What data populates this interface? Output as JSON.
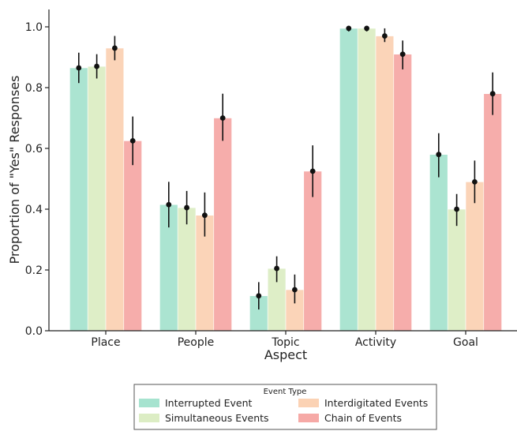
{
  "chart_data": {
    "type": "bar",
    "xlabel": "Aspect",
    "ylabel": "Proportion of \"Yes\" Responses",
    "ylim": [
      0,
      1.05
    ],
    "yticks": [
      "0.0",
      "0.2",
      "0.4",
      "0.6",
      "0.8",
      "1.0"
    ],
    "categories": [
      "Place",
      "People",
      "Topic",
      "Activity",
      "Goal"
    ],
    "error_bars": true,
    "legend": {
      "title": "Event Type",
      "placement": "bottom-center, below axes, 2 columns"
    },
    "series": [
      {
        "name": "Interrupted Event",
        "color": "#a6e3cf",
        "values": [
          0.865,
          0.415,
          0.115,
          0.995,
          0.58
        ],
        "err_low": [
          0.815,
          0.34,
          0.07,
          0.985,
          0.505
        ],
        "err_high": [
          0.915,
          0.49,
          0.16,
          1.0,
          0.65
        ]
      },
      {
        "name": "Simultaneous Events",
        "color": "#dcedc4",
        "values": [
          0.87,
          0.405,
          0.205,
          0.995,
          0.4
        ],
        "err_low": [
          0.83,
          0.35,
          0.16,
          0.985,
          0.345
        ],
        "err_high": [
          0.91,
          0.46,
          0.245,
          1.0,
          0.45
        ]
      },
      {
        "name": "Interdigitated Events",
        "color": "#fbd2b4",
        "values": [
          0.93,
          0.38,
          0.135,
          0.97,
          0.49
        ],
        "err_low": [
          0.89,
          0.31,
          0.09,
          0.95,
          0.42
        ],
        "err_high": [
          0.97,
          0.455,
          0.185,
          0.995,
          0.56
        ]
      },
      {
        "name": "Chain of Events",
        "color": "#f6a9a6",
        "values": [
          0.625,
          0.7,
          0.525,
          0.91,
          0.78
        ],
        "err_low": [
          0.545,
          0.625,
          0.44,
          0.86,
          0.71
        ],
        "err_high": [
          0.705,
          0.78,
          0.61,
          0.955,
          0.85
        ]
      }
    ]
  }
}
